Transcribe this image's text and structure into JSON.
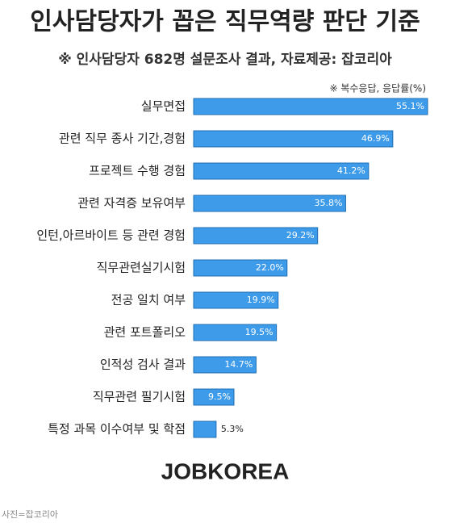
{
  "chart_data": {
    "type": "bar",
    "orientation": "horizontal",
    "title": "인사담당자가 꼽은 직무역량 판단 기준",
    "subtitle": "※ 인사담당자 682명 설문조사 결과,  자료제공: 잡코리아",
    "note": "※ 복수응답, 응답률(%)",
    "categories": [
      "실무면접",
      "관련 직무 종사 기간,경험",
      "프로젝트 수행 경험",
      "관련 자격증 보유여부",
      "인턴,아르바이트 등 관련 경험",
      "직무관련실기시험",
      "전공 일치 여부",
      "관련 포트폴리오",
      "인적성 검사 결과",
      "직무관련 필기시험",
      "특정 과목 이수여부 및 학점"
    ],
    "values": [
      55.1,
      46.9,
      41.2,
      35.8,
      29.2,
      22.0,
      19.9,
      19.5,
      14.7,
      9.5,
      5.3
    ],
    "value_labels": [
      "55.1%",
      "46.9%",
      "41.2%",
      "35.8%",
      "29.2%",
      "22.0%",
      "19.9%",
      "19.5%",
      "14.7%",
      "9.5%",
      "5.3%"
    ],
    "color": "#3d9be9",
    "brand": "JOBKOREA",
    "caption": "사진=잡코리아"
  }
}
